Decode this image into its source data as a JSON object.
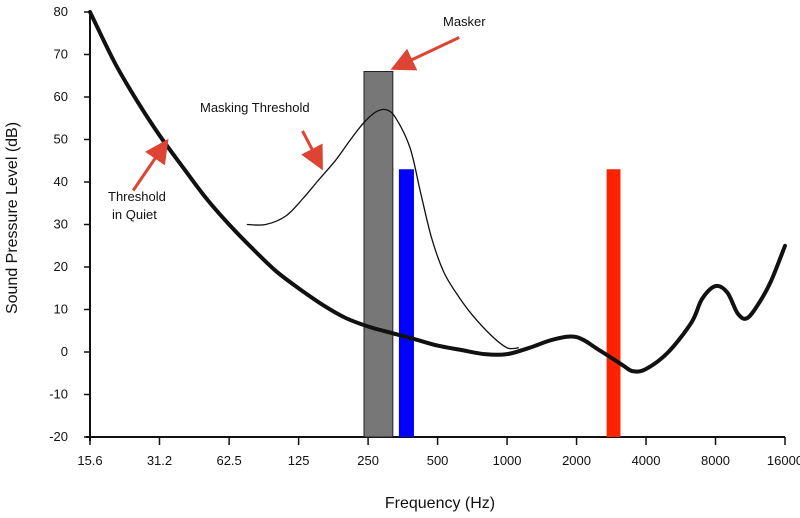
{
  "chart_data": {
    "type": "line",
    "xlabel": "Frequency (Hz)",
    "ylabel": "Sound Pressure Level (dB)",
    "x_scale": "log2",
    "xlim": [
      15.6,
      16000
    ],
    "ylim": [
      -20,
      80
    ],
    "x_ticks": [
      "15.6",
      "31.2",
      "62.5",
      "125",
      "250",
      "500",
      "1000",
      "2000",
      "4000",
      "8000",
      "16000"
    ],
    "x_tick_values": [
      15.6,
      31.2,
      62.5,
      125,
      250,
      500,
      1000,
      2000,
      4000,
      8000,
      16000
    ],
    "y_ticks": [
      "80",
      "70",
      "60",
      "50",
      "40",
      "30",
      "20",
      "10",
      "0",
      "-10",
      "-20"
    ],
    "y_tick_values": [
      80,
      70,
      60,
      50,
      40,
      30,
      20,
      10,
      0,
      -10,
      -20
    ],
    "grid": false,
    "series": [
      {
        "label": "Threshold in Quiet",
        "color": "#111111",
        "style": "thick",
        "x": [
          15.6,
          20,
          25,
          31.2,
          40,
          50,
          62.5,
          80,
          100,
          125,
          160,
          200,
          250,
          315,
          400,
          500,
          630,
          800,
          1000,
          1250,
          1600,
          2000,
          2500,
          3150,
          3500,
          4000,
          5000,
          6300,
          7000,
          8000,
          9000,
          10000,
          11000,
          12500,
          14000,
          16000
        ],
        "y": [
          80,
          68,
          59,
          51,
          43,
          36,
          30,
          24,
          19,
          15,
          11,
          8,
          6,
          4.5,
          3,
          1.5,
          0.5,
          -0.5,
          -0.5,
          1,
          3,
          3.5,
          0.5,
          -3,
          -4.5,
          -4,
          0,
          7,
          12.5,
          15.5,
          14,
          9,
          8,
          12,
          17,
          25
        ]
      },
      {
        "label": "Masking Threshold",
        "color": "#111111",
        "style": "thin",
        "x": [
          75,
          90,
          110,
          130,
          150,
          180,
          210,
          240,
          270,
          300,
          330,
          380,
          420,
          470,
          530,
          600,
          700,
          850,
          1000,
          1120
        ],
        "y": [
          30,
          30,
          32,
          36,
          40,
          45,
          50,
          54,
          56.5,
          57,
          55,
          48,
          38,
          27,
          19,
          14,
          9,
          4,
          1,
          1
        ]
      }
    ],
    "bars": [
      {
        "label": "Masker",
        "x_center": 290,
        "x_start": 240,
        "x_end": 320,
        "top": 66,
        "bottom": -20,
        "color": "#777777",
        "stroke": "#222222"
      },
      {
        "label": "",
        "x_center": 375,
        "x_start": 340,
        "x_end": 395,
        "top": 43,
        "bottom": -20,
        "color": "#0000ff"
      },
      {
        "label": "",
        "x_center": 2900,
        "x_start": 2700,
        "x_end": 3100,
        "top": 43,
        "bottom": -20,
        "color": "#ff2200"
      }
    ],
    "annotations": [
      {
        "text": [
          "Masker"
        ],
        "anchor_x": 800,
        "anchor_y": 79,
        "arrow_from_x": 620,
        "arrow_from_y": 74,
        "arrow_to_x": 330,
        "arrow_to_y": 67
      },
      {
        "text": [
          "Masking Threshold"
        ],
        "anchor_x": 100,
        "anchor_y": 57,
        "arrow_from_x": 130,
        "arrow_from_y": 52,
        "arrow_to_x": 155,
        "arrow_to_y": 44
      },
      {
        "text": [
          "Threshold",
          "in Quiet"
        ],
        "anchor_x": 19,
        "anchor_y": 34,
        "arrow_from_x": 24,
        "arrow_from_y": 38,
        "arrow_to_x": 33,
        "arrow_to_y": 49
      }
    ],
    "arrow_color": "#dd4433"
  }
}
